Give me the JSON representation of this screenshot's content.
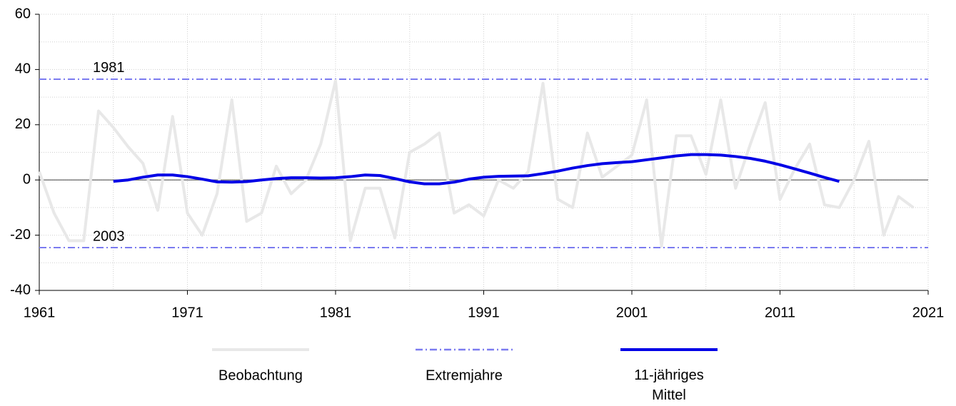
{
  "chart_data": {
    "type": "line",
    "x": [
      1961,
      1962,
      1963,
      1964,
      1965,
      1966,
      1967,
      1968,
      1969,
      1970,
      1971,
      1972,
      1973,
      1974,
      1975,
      1976,
      1977,
      1978,
      1979,
      1980,
      1981,
      1982,
      1983,
      1984,
      1985,
      1986,
      1987,
      1988,
      1989,
      1990,
      1991,
      1992,
      1993,
      1994,
      1995,
      1996,
      1997,
      1998,
      1999,
      2000,
      2001,
      2002,
      2003,
      2004,
      2005,
      2006,
      2007,
      2008,
      2009,
      2010,
      2011,
      2012,
      2013,
      2014,
      2015,
      2016,
      2017,
      2018,
      2019,
      2020
    ],
    "series": [
      {
        "name": "Beobachtung",
        "color": "#e8e8e8",
        "width": 4,
        "values": [
          3,
          -12,
          -22,
          -22,
          25,
          19,
          12,
          6,
          -11,
          23,
          -12,
          -20,
          -5,
          29,
          -15,
          -12,
          5,
          -5,
          0,
          13,
          36,
          -22,
          -3,
          -3,
          -21,
          10,
          13,
          17,
          -12,
          -9,
          -13,
          0,
          -3,
          3,
          35,
          -7,
          -10,
          17,
          1,
          5,
          9,
          29,
          -24,
          16,
          16,
          2,
          29,
          -3,
          13,
          28,
          -7,
          4,
          13,
          -9,
          -10,
          0,
          14,
          -20,
          -6,
          -10
        ]
      },
      {
        "name": "11-jähriges Mittel",
        "color": "#0000e6",
        "width": 4,
        "values": [
          null,
          null,
          null,
          null,
          null,
          -0.5,
          0,
          1,
          1.8,
          1.8,
          1.2,
          0.3,
          -0.7,
          -0.8,
          -0.6,
          0,
          0.5,
          0.8,
          0.8,
          0.7,
          0.8,
          1.2,
          1.8,
          1.6,
          0.5,
          -0.7,
          -1.4,
          -1.4,
          -0.8,
          0.3,
          1,
          1.3,
          1.4,
          1.5,
          2.3,
          3.2,
          4.3,
          5.2,
          5.9,
          6.3,
          6.6,
          7.3,
          8,
          8.7,
          9.2,
          9.2,
          9,
          8.5,
          7.8,
          6.8,
          5.5,
          4,
          2.5,
          0.9,
          -0.5,
          null,
          null,
          null,
          null,
          null
        ]
      }
    ],
    "reference_lines": {
      "name": "Extremjahre",
      "color": "#7b7bf0",
      "lines": [
        {
          "label": "1981",
          "value": 36.5
        },
        {
          "label": "2003",
          "value": -24.5
        }
      ]
    },
    "xlim": [
      1961,
      2021
    ],
    "xticks": [
      1961,
      1971,
      1981,
      1991,
      2001,
      2011,
      2021
    ],
    "ylim": [
      -40,
      60
    ],
    "yticks": [
      -40,
      -20,
      0,
      20,
      40,
      60
    ],
    "x_minor_grid": [
      1966,
      1976,
      1986,
      1996,
      2006,
      2016
    ],
    "y_minor_grid": [
      -30,
      -10,
      10,
      30,
      50
    ],
    "grid": true,
    "legend": "bottom"
  }
}
